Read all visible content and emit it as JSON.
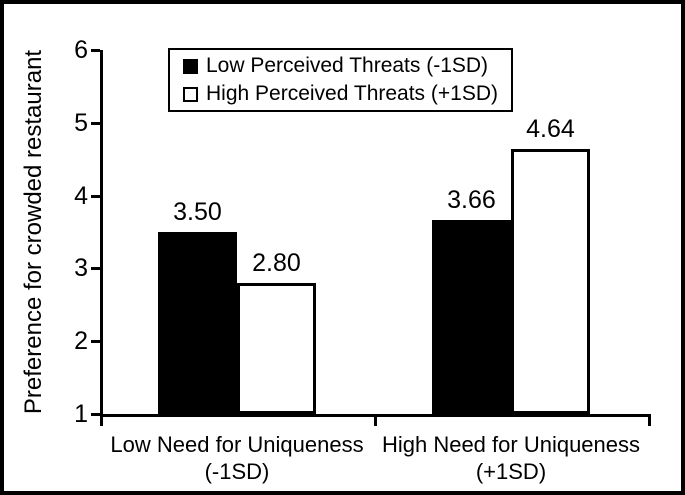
{
  "chart_data": {
    "type": "bar",
    "title": "",
    "ylabel": "Preference for crowded restaurant",
    "xlabel": "",
    "ylim": [
      1,
      6
    ],
    "yticks": [
      1,
      2,
      3,
      4,
      5,
      6
    ],
    "grid": false,
    "legend_position": "top-center",
    "axis_color": "#000000",
    "background_color": "#ffffff",
    "categories": [
      {
        "line1": "Low Need for Uniqueness",
        "line2": "(-1SD)"
      },
      {
        "line1": "High Need for Uniqueness",
        "line2": "(+1SD)"
      }
    ],
    "series": [
      {
        "name": "Low Perceived Threats (-1SD)",
        "fill": "#000000",
        "edge": "#000000",
        "values": [
          3.5,
          3.66
        ],
        "value_labels": [
          "3.50",
          "3.66"
        ]
      },
      {
        "name": "High Perceived Threats (+1SD)",
        "fill": "#ffffff",
        "edge": "#000000",
        "values": [
          2.8,
          4.64
        ],
        "value_labels": [
          "2.80",
          "4.64"
        ]
      }
    ]
  }
}
